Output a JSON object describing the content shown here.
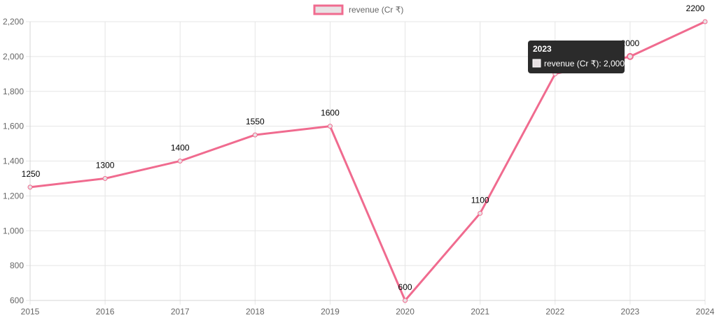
{
  "chart_data": {
    "type": "line",
    "x": [
      "2015",
      "2016",
      "2017",
      "2018",
      "2019",
      "2020",
      "2021",
      "2022",
      "2023",
      "2024"
    ],
    "series": [
      {
        "name": "revenue (Cr ₹)",
        "values": [
          1250,
          1300,
          1400,
          1550,
          1600,
          600,
          1100,
          1900,
          2000,
          2200
        ],
        "data_labels": [
          "1250",
          "1300",
          "1400",
          "1550",
          "1600",
          "600",
          "1100",
          "1900",
          "2000",
          "2200"
        ],
        "color": "#f06b8f",
        "fill": "#e8e2e4"
      }
    ],
    "y_ticks": [
      600,
      800,
      1000,
      1200,
      1400,
      1600,
      1800,
      2000,
      2200
    ],
    "y_tick_labels": [
      "600",
      "800",
      "1,000",
      "1,200",
      "1,400",
      "1,600",
      "1,800",
      "2,000",
      "2,200"
    ],
    "ylim": [
      600,
      2200
    ],
    "grid": true,
    "legend": {
      "position": "top-center",
      "label": "revenue (Cr ₹)"
    },
    "tooltip": {
      "title": "2023",
      "label": "revenue (Cr ₹): 2,000",
      "point_index": 8
    }
  },
  "colors": {
    "line": "#f06b8f",
    "grid": "#e5e5e5",
    "tooltip_bg": "#2b2b2b"
  }
}
